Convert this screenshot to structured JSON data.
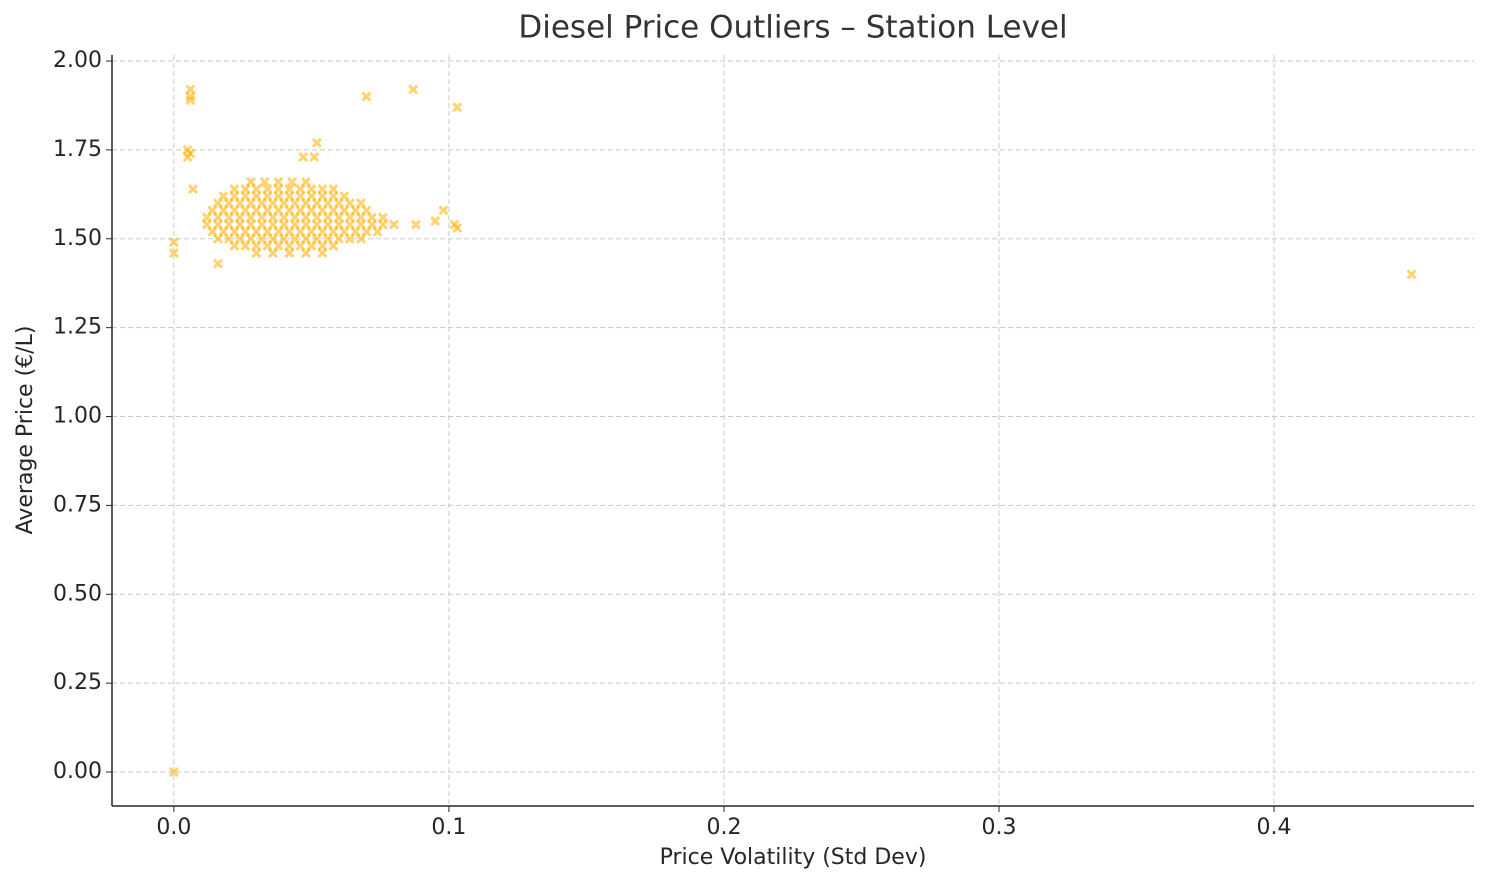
{
  "chart_data": {
    "type": "scatter",
    "title": "Diesel Price Outliers – Station Level",
    "x_label": "Price Volatility (Std Dev)",
    "y_label": "Average Price (€/L)",
    "marker": "x",
    "color": "#ffb000",
    "grid": true,
    "xlim": [
      -0.0225,
      0.4727
    ],
    "ylim": [
      -0.0956,
      2.017
    ],
    "xticks": [
      {
        "value": 0,
        "label": "0.0"
      },
      0.1,
      0.2,
      0.3,
      0.4
    ],
    "yticks": [
      {
        "value": 0,
        "label": "0.00"
      },
      {
        "value": 0.25,
        "label": "0.25"
      },
      {
        "value": 0.5,
        "label": "0.50"
      },
      {
        "value": 0.75,
        "label": "0.75"
      },
      {
        "value": 1,
        "label": "1.00"
      },
      {
        "value": 1.25,
        "label": "1.25"
      },
      {
        "value": 1.5,
        "label": "1.50"
      },
      {
        "value": 1.75,
        "label": "1.75"
      },
      {
        "value": 2,
        "label": "2.00"
      }
    ],
    "x": [
      0.028,
      0.033,
      0.038,
      0.043,
      0.048,
      0.022,
      0.026,
      0.03,
      0.034,
      0.038,
      0.042,
      0.046,
      0.05,
      0.054,
      0.058,
      0.018,
      0.022,
      0.026,
      0.03,
      0.034,
      0.038,
      0.042,
      0.046,
      0.05,
      0.054,
      0.058,
      0.062,
      0.016,
      0.02,
      0.024,
      0.028,
      0.032,
      0.036,
      0.04,
      0.044,
      0.048,
      0.052,
      0.056,
      0.06,
      0.064,
      0.068,
      0.014,
      0.018,
      0.022,
      0.026,
      0.03,
      0.034,
      0.038,
      0.042,
      0.046,
      0.05,
      0.054,
      0.058,
      0.062,
      0.066,
      0.07,
      0.012,
      0.016,
      0.02,
      0.024,
      0.028,
      0.032,
      0.036,
      0.04,
      0.044,
      0.048,
      0.052,
      0.056,
      0.06,
      0.064,
      0.068,
      0.072,
      0.076,
      0.012,
      0.016,
      0.02,
      0.024,
      0.028,
      0.032,
      0.036,
      0.04,
      0.044,
      0.048,
      0.052,
      0.056,
      0.06,
      0.064,
      0.068,
      0.072,
      0.076,
      0.08,
      0.014,
      0.018,
      0.022,
      0.026,
      0.03,
      0.034,
      0.038,
      0.042,
      0.046,
      0.05,
      0.054,
      0.058,
      0.062,
      0.066,
      0.07,
      0.074,
      0.016,
      0.02,
      0.024,
      0.028,
      0.032,
      0.036,
      0.04,
      0.044,
      0.048,
      0.052,
      0.056,
      0.06,
      0.064,
      0.068,
      0.022,
      0.026,
      0.03,
      0.034,
      0.038,
      0.042,
      0.046,
      0.05,
      0.054,
      0.058,
      0.03,
      0.036,
      0.042,
      0.048,
      0.054,
      0.006,
      0.006,
      0.006,
      0.005,
      0.006,
      0.005,
      0.07,
      0.087,
      0.103,
      0.052,
      0.051,
      0.047,
      0.0,
      0.0,
      0.0,
      0.45,
      0.098,
      0.095,
      0.088,
      0.102,
      0.103,
      0.007,
      0.016
    ],
    "values": [
      1.66,
      1.66,
      1.66,
      1.66,
      1.66,
      1.64,
      1.64,
      1.64,
      1.64,
      1.64,
      1.64,
      1.64,
      1.64,
      1.64,
      1.64,
      1.62,
      1.62,
      1.62,
      1.62,
      1.62,
      1.62,
      1.62,
      1.62,
      1.62,
      1.62,
      1.62,
      1.62,
      1.6,
      1.6,
      1.6,
      1.6,
      1.6,
      1.6,
      1.6,
      1.6,
      1.6,
      1.6,
      1.6,
      1.6,
      1.6,
      1.6,
      1.58,
      1.58,
      1.58,
      1.58,
      1.58,
      1.58,
      1.58,
      1.58,
      1.58,
      1.58,
      1.58,
      1.58,
      1.58,
      1.58,
      1.58,
      1.56,
      1.56,
      1.56,
      1.56,
      1.56,
      1.56,
      1.56,
      1.56,
      1.56,
      1.56,
      1.56,
      1.56,
      1.56,
      1.56,
      1.56,
      1.56,
      1.56,
      1.54,
      1.54,
      1.54,
      1.54,
      1.54,
      1.54,
      1.54,
      1.54,
      1.54,
      1.54,
      1.54,
      1.54,
      1.54,
      1.54,
      1.54,
      1.54,
      1.54,
      1.54,
      1.52,
      1.52,
      1.52,
      1.52,
      1.52,
      1.52,
      1.52,
      1.52,
      1.52,
      1.52,
      1.52,
      1.52,
      1.52,
      1.52,
      1.52,
      1.52,
      1.5,
      1.5,
      1.5,
      1.5,
      1.5,
      1.5,
      1.5,
      1.5,
      1.5,
      1.5,
      1.5,
      1.5,
      1.5,
      1.5,
      1.48,
      1.48,
      1.48,
      1.48,
      1.48,
      1.48,
      1.48,
      1.48,
      1.48,
      1.48,
      1.46,
      1.46,
      1.46,
      1.46,
      1.46,
      1.92,
      1.9,
      1.89,
      1.75,
      1.74,
      1.73,
      1.9,
      1.92,
      1.87,
      1.77,
      1.73,
      1.73,
      1.49,
      1.46,
      0.0,
      1.4,
      1.58,
      1.55,
      1.54,
      1.54,
      1.53,
      1.64,
      1.43
    ]
  }
}
